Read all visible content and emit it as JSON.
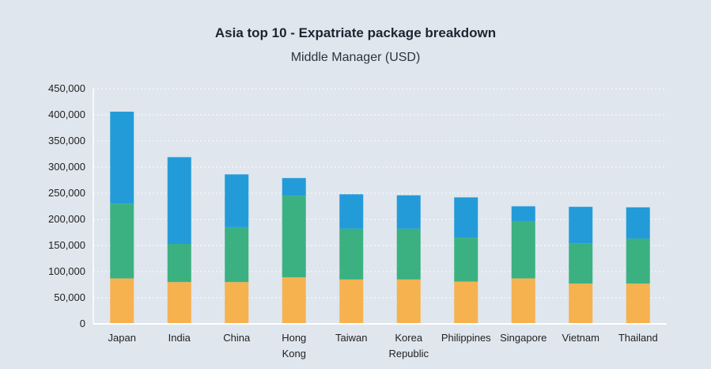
{
  "chart_data": {
    "type": "bar",
    "stacked": true,
    "title": "Asia top 10 - Expatriate package breakdown",
    "subtitle": "Middle Manager (USD)",
    "xlabel": "",
    "ylabel": "",
    "ylim": [
      0,
      450000
    ],
    "yticks": [
      "450,000",
      "400,000",
      "350,000",
      "300,000",
      "250,000",
      "200,000",
      "150,000",
      "100,000",
      "50,000",
      "0"
    ],
    "ytick_values": [
      450000,
      400000,
      350000,
      300000,
      250000,
      200000,
      150000,
      100000,
      50000,
      0
    ],
    "grid": true,
    "legend": "none",
    "categories": [
      "Japan",
      "India",
      "China",
      "Hong Kong",
      "Taiwan",
      "Korea Republic",
      "Philippines",
      "Singapore",
      "Vietnam",
      "Thailand"
    ],
    "category_lines": [
      [
        "Japan"
      ],
      [
        "India"
      ],
      [
        "China"
      ],
      [
        "Hong",
        "Kong"
      ],
      [
        "Taiwan"
      ],
      [
        "Korea",
        "Republic"
      ],
      [
        "Philippines"
      ],
      [
        "Singapore"
      ],
      [
        "Vietnam"
      ],
      [
        "Thailand"
      ]
    ],
    "series": [
      {
        "values": [
          87000,
          80000,
          80000,
          89000,
          85000,
          85000,
          81000,
          87000,
          77000,
          77000
        ]
      },
      {
        "values": [
          143000,
          73000,
          105000,
          156000,
          97000,
          97000,
          84000,
          109000,
          77000,
          86000
        ]
      },
      {
        "values": [
          176000,
          166000,
          101000,
          34000,
          66000,
          64000,
          77000,
          29000,
          70000,
          60000
        ]
      }
    ],
    "colors": [
      "#f6b24f",
      "#3bb182",
      "#239bd8"
    ]
  }
}
